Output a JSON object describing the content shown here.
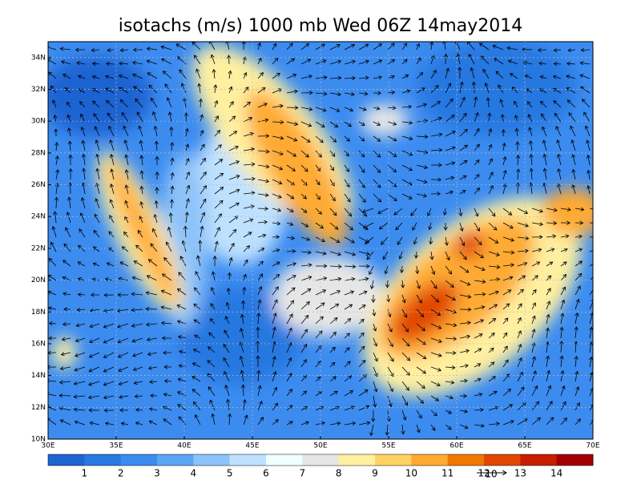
{
  "title": "isotachs (m/s) 1000 mb Wed 06Z 14may2014",
  "longitude_labels": [
    "30E",
    "35E",
    "40E",
    "45E",
    "50E",
    "55E",
    "60E",
    "65E",
    "70E"
  ],
  "latitude_labels": [
    "10N",
    "12N",
    "14N",
    "16N",
    "18N",
    "20N",
    "22N",
    "24N",
    "26N",
    "28N",
    "30N",
    "32N",
    "34N"
  ],
  "colorbar": {
    "labels": [
      1,
      2,
      3,
      4,
      5,
      6,
      7,
      8,
      9,
      10,
      11,
      12,
      13,
      14
    ],
    "colors": [
      "#1e64d2",
      "#2878e1",
      "#3c8cf0",
      "#5aa5f5",
      "#8cc3fa",
      "#bee1ff",
      "#f0ffff",
      "#e6e6e6",
      "#fff0a0",
      "#ffd264",
      "#ffaa32",
      "#f07800",
      "#e14600",
      "#c81e00",
      "#a00000"
    ]
  },
  "reference_vector": {
    "label": "10"
  }
}
